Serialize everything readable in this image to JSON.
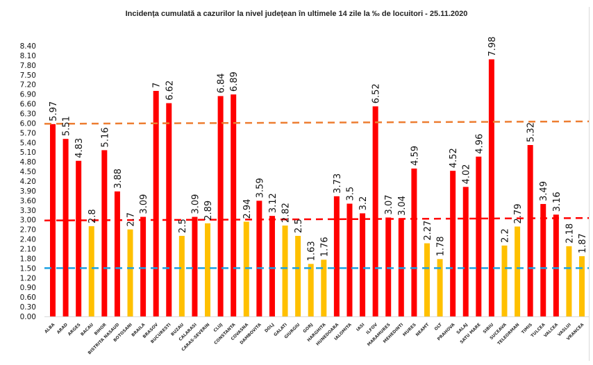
{
  "chart_data": {
    "type": "bar",
    "title": "Incidența cumulată a cazurilor la nivel județean în ultimele 14 zile la ‰ de locuitori - 25.11.2020",
    "xlabel": "",
    "ylabel": "",
    "ylim": [
      0,
      8.4
    ],
    "ytick_step": 0.3,
    "ytick_labels": [
      "0.00",
      "0.30",
      "0.60",
      "0.90",
      "1.20",
      "1.50",
      "1.80",
      "2.10",
      "2.40",
      "2.70",
      "3.00",
      "3.30",
      "3.60",
      "3.90",
      "4.20",
      "4.50",
      "4.80",
      "5.10",
      "5.40",
      "5.70",
      "6.00",
      "6.30",
      "6.60",
      "6.90",
      "7.20",
      "7.50",
      "7.80",
      "8.10",
      "8.40"
    ],
    "grid": false,
    "legend": "none",
    "categories": [
      "ALBA",
      "ARAD",
      "ARGES",
      "BACAU",
      "BIHOR",
      "BISTRITA NASAUD",
      "BOTOSANI",
      "BRAILA",
      "BRASOV",
      "BUCURESTI",
      "BUZAU",
      "CALARASI",
      "CARAS-SEVERIN",
      "CLUJ",
      "CONSTANTA",
      "COVASNA",
      "DAMBOVITA",
      "DOLJ",
      "GALATI",
      "GIURGIU",
      "GORJ",
      "HARGHITA",
      "HUNEDOARA",
      "IALOMITA",
      "IASI",
      "ILFOV",
      "MARAMURES",
      "MEHEDINTI",
      "MURES",
      "NEAMT",
      "OLT",
      "PRAHOVA",
      "SALAJ",
      "SATU MARE",
      "SIBIU",
      "SUCEAVA",
      "TELEORMAN",
      "TIMIS",
      "TULCEA",
      "VALCEA",
      "VASLUI",
      "VRANCEA"
    ],
    "values": [
      5.97,
      5.51,
      4.83,
      2.8,
      5.16,
      3.88,
      2.7,
      3.09,
      7,
      6.62,
      2.5,
      3.09,
      2.89,
      6.84,
      6.89,
      2.94,
      3.59,
      3.12,
      2.82,
      2.5,
      1.63,
      1.76,
      3.73,
      3.5,
      3.2,
      6.52,
      3.07,
      3.04,
      4.59,
      2.27,
      1.78,
      4.52,
      4.02,
      4.96,
      7.98,
      2.2,
      2.79,
      5.32,
      3.49,
      3.16,
      2.18,
      1.87
    ],
    "data_labels": [
      "5.97",
      "5.51",
      "4.83",
      "2.8",
      "5.16",
      "3.88",
      "2.7",
      "3.09",
      "7",
      "6.62",
      "2.5",
      "3.09",
      "2.89",
      "6.84",
      "6.89",
      "2.94",
      "3.59",
      "3.12",
      "2.82",
      "2.5",
      "1.63",
      "1.76",
      "3.73",
      "3.5",
      "3.2",
      "6.52",
      "3.07",
      "3.04",
      "4.59",
      "2.27",
      "1.78",
      "4.52",
      "4.02",
      "4.96",
      "7.98",
      "2.2",
      "2.79",
      "5.32",
      "3.49",
      "3.16",
      "2.18",
      "1.87"
    ],
    "color_rule": {
      "threshold": 3.0,
      "above_color": "#ff0000",
      "below_color": "#ffc000"
    },
    "reference_lines": [
      {
        "name": "threshold-6",
        "value": 6.0,
        "color": "#f4a460",
        "stroke": "#ed7d31",
        "style": "dashed"
      },
      {
        "name": "threshold-3",
        "value": 3.0,
        "color": "#ff0000",
        "style": "dashed"
      },
      {
        "name": "threshold-1.5",
        "value": 1.5,
        "color": "#1ba1e2",
        "style": "dashed"
      }
    ]
  }
}
